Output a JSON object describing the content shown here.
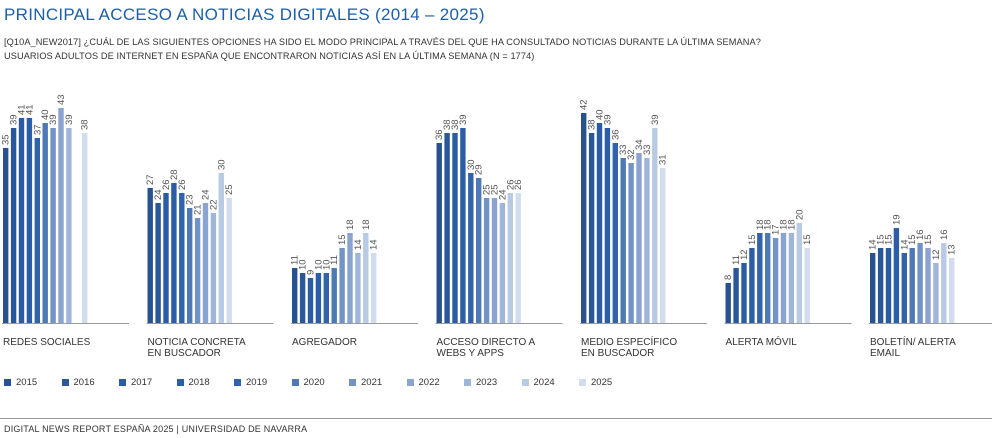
{
  "title": "PRINCIPAL ACCESO A NOTICIAS DIGITALES (2014 – 2025)",
  "subtitle_line1": "[Q10A_NEW2017] ¿CUÁL DE LAS SIGUIENTES OPCIONES HA SIDO EL MODO PRINCIPAL A TRAVÉS DEL QUE HA CONSULTADO NOTICIAS DURANTE LA ÚLTIMA SEMANA?",
  "subtitle_line2": "USUARIOS ADULTOS DE INTERNET EN ESPAÑA QUE ENCONTRARON NOTICIAS ASÍ EN LA ÚLTIMA SEMANA (N = 1774)",
  "footer": "DIGITAL NEWS REPORT ESPAÑA 2025 | UNIVERSIDAD DE NAVARRA",
  "colors": [
    "#27528f",
    "#2a5799",
    "#2b5ba3",
    "#2c5ea8",
    "#3262aa",
    "#4e79b5",
    "#7393c5",
    "#8aa3cf",
    "#a0b6d9",
    "#b9cae4",
    "#d2dcef"
  ],
  "chart_data": {
    "type": "bar",
    "title": "PRINCIPAL ACCESO A NOTICIAS DIGITALES (2014 – 2025)",
    "categories": [
      [
        "REDES SOCIALES"
      ],
      [
        "NOTICIA CONCRETA",
        "EN BUSCADOR"
      ],
      [
        "AGREGADOR"
      ],
      [
        "ACCESO DIRECTO A",
        "WEBS Y APPS"
      ],
      [
        "MEDIO ESPECÍFICO",
        "EN BUSCADOR"
      ],
      [
        "ALERTA MÓVIL"
      ],
      [
        "BOLETÍN/ ALERTA",
        "EMAIL"
      ]
    ],
    "series": [
      {
        "name": "2015",
        "values": [
          35,
          27,
          11,
          36,
          42,
          8,
          14
        ]
      },
      {
        "name": "2016",
        "values": [
          39,
          24,
          10,
          38,
          38,
          11,
          15
        ]
      },
      {
        "name": "2017",
        "values": [
          41,
          26,
          9,
          38,
          40,
          12,
          15
        ]
      },
      {
        "name": "2018",
        "values": [
          41,
          28,
          10,
          39,
          39,
          15,
          19
        ]
      },
      {
        "name": "2019",
        "values": [
          37,
          26,
          10,
          30,
          36,
          18,
          14
        ]
      },
      {
        "name": "2020",
        "values": [
          40,
          23,
          11,
          29,
          33,
          18,
          15
        ]
      },
      {
        "name": "2021",
        "values": [
          39,
          21,
          15,
          25,
          32,
          17,
          16
        ]
      },
      {
        "name": "2022",
        "values": [
          43,
          24,
          18,
          25,
          34,
          18,
          15
        ]
      },
      {
        "name": "2023",
        "values": [
          39,
          22,
          14,
          24,
          33,
          18,
          12
        ]
      },
      {
        "name": "2024",
        "values": [
          null,
          30,
          18,
          26,
          39,
          20,
          16
        ]
      },
      {
        "name": "2025",
        "values": [
          38,
          25,
          14,
          26,
          31,
          15,
          13
        ]
      }
    ],
    "ylim": [
      0,
      45
    ],
    "grid": false,
    "legend": "bottom"
  }
}
